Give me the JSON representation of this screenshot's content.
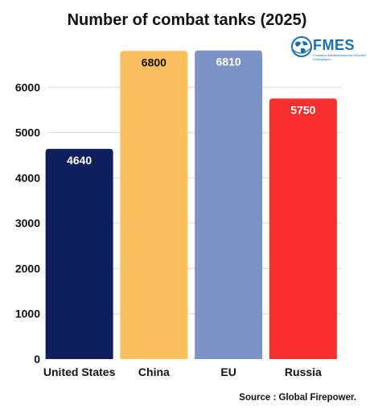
{
  "chart_data": {
    "type": "bar",
    "title": "Number of combat tanks (2025)",
    "categories": [
      "United States",
      "China",
      "EU",
      "Russia"
    ],
    "values": [
      4640,
      6800,
      6810,
      5750
    ],
    "colors": [
      "#0e1f5b",
      "#fbbf5d",
      "#7b93c5",
      "#f7302f"
    ],
    "ylim": [
      0,
      7000
    ],
    "yticks": [
      0,
      1000,
      2000,
      3000,
      4000,
      5000,
      6000
    ],
    "grid": true,
    "xlabel": "",
    "ylabel": ""
  },
  "logo": {
    "name": "FMES",
    "subtitle": "Fondation Méditerranéenne d'Études Stratégiques",
    "icon": "globe-icon"
  },
  "source": "Source : Global Firepower."
}
